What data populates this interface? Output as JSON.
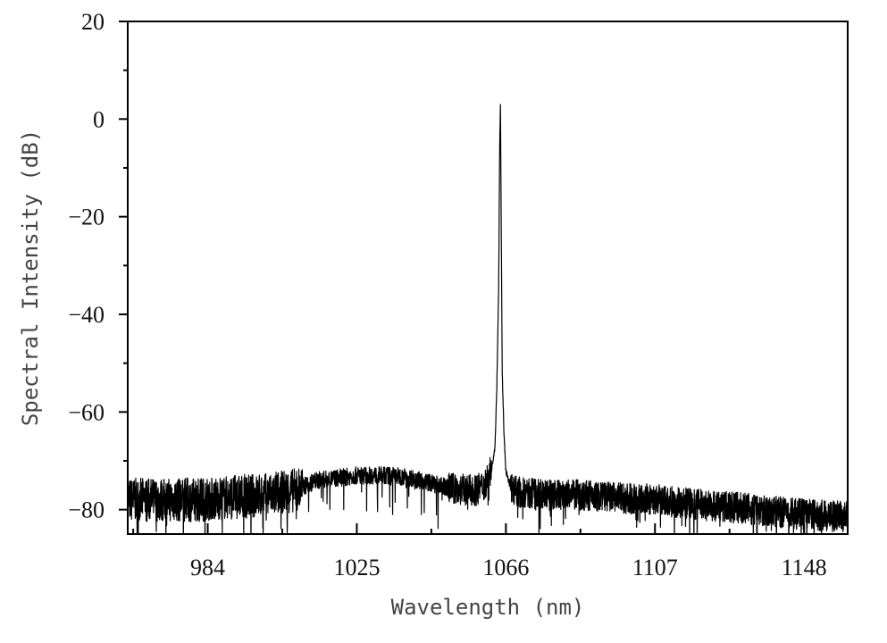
{
  "chart_data": {
    "type": "line",
    "title": "",
    "xlabel": "Wavelength (nm)",
    "ylabel": "Spectral Intensity (dB)",
    "xlim": [
      962,
      1160
    ],
    "ylim": [
      -85,
      20
    ],
    "x_ticks": [
      984,
      1025,
      1066,
      1107,
      1148
    ],
    "x_tick_labels": [
      "984",
      "1025",
      "1066",
      "1107",
      "1148"
    ],
    "y_ticks": [
      20,
      0,
      -20,
      -40,
      -60,
      -80
    ],
    "y_tick_labels": [
      "20",
      "0",
      "−20",
      "−40",
      "−60",
      "−80"
    ],
    "grid": false,
    "series": [
      {
        "color": "#000000",
        "x": [
          962,
          970,
          980,
          990,
          1000,
          1008,
          1014,
          1020,
          1025,
          1030,
          1035,
          1040,
          1045,
          1050,
          1055,
          1058,
          1060,
          1062,
          1063,
          1063.5,
          1064,
          1064.3,
          1064.5,
          1064.7,
          1065,
          1065.5,
          1066,
          1067,
          1068,
          1070,
          1075,
          1085,
          1095,
          1107,
          1120,
          1135,
          1148,
          1160
        ],
        "y": [
          -78,
          -78,
          -78,
          -77.5,
          -77,
          -76,
          -74,
          -73.5,
          -73,
          -73,
          -73,
          -73.5,
          -74.5,
          -75.5,
          -76,
          -76,
          -75,
          -72,
          -67,
          -55,
          -35,
          -5,
          3,
          -20,
          -52,
          -65,
          -72,
          -75,
          -76,
          -76.5,
          -77,
          -77,
          -77.5,
          -78,
          -79,
          -80,
          -81,
          -81.5
        ]
      }
    ]
  }
}
